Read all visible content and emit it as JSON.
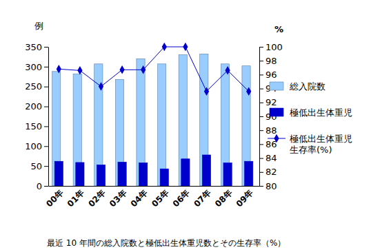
{
  "chart_data": {
    "type": "bar",
    "title": "最近 10 年間の総入院数と極低出生体重児数とその生存率（%）",
    "y_label": "例",
    "y2_label": "%",
    "categories": [
      "00年",
      "01年",
      "02年",
      "03年",
      "04年",
      "05年",
      "06年",
      "07年",
      "08年",
      "09年"
    ],
    "series": [
      {
        "name": "総入院数",
        "type": "bar",
        "color": "#99ccff",
        "values": [
          288,
          282,
          307,
          268,
          320,
          307,
          330,
          332,
          307,
          302
        ]
      },
      {
        "name": "極低出生体重児",
        "type": "bar",
        "color": "#0000cc",
        "values": [
          62,
          59,
          53,
          60,
          58,
          43,
          68,
          78,
          58,
          62
        ]
      },
      {
        "name": "極低出生体重児生存率(%)",
        "type": "line",
        "axis": "y2",
        "marker": "diamond",
        "color": "#0000cc",
        "values": [
          96.8,
          96.6,
          94.3,
          96.7,
          96.7,
          100,
          100,
          93.6,
          96.6,
          93.6
        ]
      }
    ],
    "ylim": [
      0,
      350
    ],
    "yticks": [
      0,
      50,
      100,
      150,
      200,
      250,
      300,
      350
    ],
    "y2lim": [
      80,
      100
    ],
    "y2ticks": [
      80,
      82,
      84,
      86,
      88,
      90,
      92,
      94,
      96,
      98,
      100
    ],
    "legend": "right",
    "grid": false
  }
}
